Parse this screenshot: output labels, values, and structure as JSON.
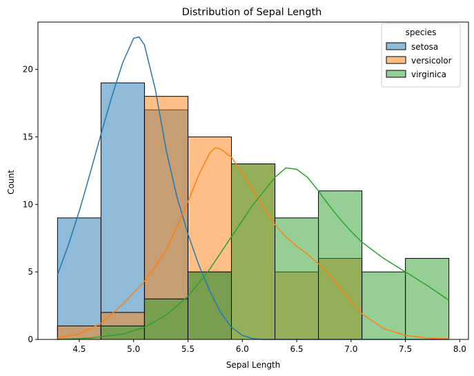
{
  "chart_data": {
    "type": "histogram",
    "title": "Distribution of Sepal Length",
    "xlabel": "Sepal Length",
    "ylabel": "Count",
    "xlim": [
      4.12,
      8.08
    ],
    "ylim": [
      0,
      23.5
    ],
    "xticks": [
      4.5,
      5.0,
      5.5,
      6.0,
      6.5,
      7.0,
      7.5,
      8.0
    ],
    "xtick_labels": [
      "4.5",
      "5.0",
      "5.5",
      "6.0",
      "6.5",
      "7.0",
      "7.5",
      "8.0"
    ],
    "yticks": [
      0,
      5,
      10,
      15,
      20
    ],
    "ytick_labels": [
      "0",
      "5",
      "10",
      "15",
      "20"
    ],
    "bin_edges": [
      4.3,
      4.7,
      5.1,
      5.5,
      5.9,
      6.3,
      6.7,
      7.1,
      7.5,
      7.9
    ],
    "grid": false,
    "legend_title": "species",
    "legend_position": "top-right",
    "series": [
      {
        "name": "setosa",
        "color": "#1f77b4",
        "counts": [
          9,
          19,
          17,
          5,
          0,
          0,
          0,
          0,
          0
        ],
        "kde": [
          [
            4.3,
            4.8
          ],
          [
            4.4,
            7.0
          ],
          [
            4.5,
            9.5
          ],
          [
            4.6,
            12.3
          ],
          [
            4.7,
            15.2
          ],
          [
            4.8,
            18.0
          ],
          [
            4.9,
            20.5
          ],
          [
            5.0,
            22.3
          ],
          [
            5.05,
            22.4
          ],
          [
            5.1,
            21.8
          ],
          [
            5.2,
            18.5
          ],
          [
            5.3,
            14.0
          ],
          [
            5.4,
            10.5
          ],
          [
            5.5,
            7.8
          ],
          [
            5.6,
            5.5
          ],
          [
            5.7,
            3.6
          ],
          [
            5.8,
            2.0
          ],
          [
            5.9,
            0.9
          ],
          [
            6.0,
            0.3
          ],
          [
            6.1,
            0.05
          ],
          [
            6.2,
            0.0
          ],
          [
            7.9,
            0.0
          ]
        ]
      },
      {
        "name": "versicolor",
        "color": "#ff7f0e",
        "counts": [
          1,
          2,
          18,
          15,
          13,
          5,
          6,
          0,
          0
        ],
        "kde": [
          [
            4.3,
            0.1
          ],
          [
            4.5,
            0.4
          ],
          [
            4.7,
            1.2
          ],
          [
            4.9,
            2.6
          ],
          [
            5.1,
            4.3
          ],
          [
            5.3,
            6.6
          ],
          [
            5.5,
            10.2
          ],
          [
            5.6,
            12.2
          ],
          [
            5.7,
            13.8
          ],
          [
            5.75,
            14.2
          ],
          [
            5.8,
            14.1
          ],
          [
            5.9,
            13.5
          ],
          [
            6.0,
            12.3
          ],
          [
            6.1,
            11.0
          ],
          [
            6.2,
            9.7
          ],
          [
            6.3,
            8.5
          ],
          [
            6.4,
            7.6
          ],
          [
            6.5,
            6.9
          ],
          [
            6.6,
            6.3
          ],
          [
            6.7,
            5.6
          ],
          [
            6.8,
            4.8
          ],
          [
            6.9,
            3.8
          ],
          [
            7.0,
            2.8
          ],
          [
            7.1,
            1.9
          ],
          [
            7.3,
            0.8
          ],
          [
            7.5,
            0.3
          ],
          [
            7.7,
            0.1
          ],
          [
            7.9,
            0.05
          ]
        ]
      },
      {
        "name": "virginica",
        "color": "#2ca02c",
        "counts": [
          0,
          1,
          3,
          5,
          13,
          9,
          11,
          5,
          6
        ],
        "kde": [
          [
            4.3,
            0.0
          ],
          [
            4.6,
            0.1
          ],
          [
            4.9,
            0.4
          ],
          [
            5.1,
            0.9
          ],
          [
            5.3,
            1.8
          ],
          [
            5.5,
            3.2
          ],
          [
            5.7,
            5.2
          ],
          [
            5.9,
            7.6
          ],
          [
            6.1,
            10.0
          ],
          [
            6.3,
            12.0
          ],
          [
            6.4,
            12.7
          ],
          [
            6.5,
            12.6
          ],
          [
            6.6,
            12.0
          ],
          [
            6.7,
            11.0
          ],
          [
            6.8,
            9.9
          ],
          [
            6.9,
            8.9
          ],
          [
            7.0,
            8.0
          ],
          [
            7.1,
            7.2
          ],
          [
            7.3,
            6.0
          ],
          [
            7.5,
            5.0
          ],
          [
            7.7,
            4.0
          ],
          [
            7.9,
            2.9
          ]
        ]
      }
    ]
  }
}
